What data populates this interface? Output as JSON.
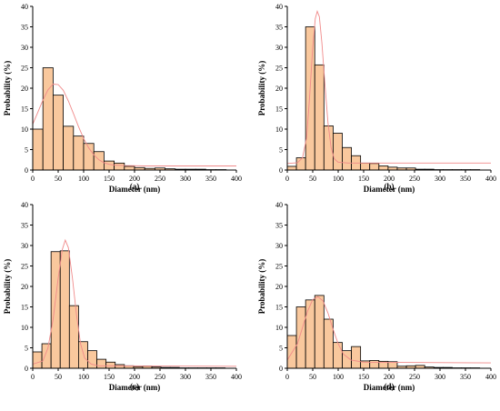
{
  "colors": {
    "bar_fill": "#f9c89d",
    "bar_stroke": "#000000",
    "fit_line": "#f08a8a",
    "axis": "#000000"
  },
  "chart_data": [
    {
      "type": "bar",
      "panel_label": "(a)",
      "xlabel": "Diameter (nm)",
      "ylabel": "Probability (%)",
      "xlim": [
        0,
        400
      ],
      "ylim": [
        0,
        40
      ],
      "x_ticks": [
        0,
        50,
        100,
        150,
        200,
        250,
        300,
        350,
        400
      ],
      "y_ticks": [
        0,
        5,
        10,
        15,
        20,
        25,
        30,
        35,
        40
      ],
      "bin_width": 20,
      "bins": [
        0,
        20,
        40,
        60,
        80,
        100,
        120,
        140,
        160,
        180,
        200,
        220,
        240,
        260,
        280,
        300,
        320,
        340,
        360
      ],
      "values": [
        10,
        25,
        18.3,
        10.7,
        8.3,
        6.5,
        4.5,
        2.2,
        1.7,
        0.9,
        0.6,
        0.4,
        0.5,
        0.3,
        0.2,
        0.2,
        0.2,
        0.1,
        0.1
      ],
      "fit_curve": [
        [
          0,
          11.2
        ],
        [
          10,
          14.1
        ],
        [
          20,
          17.1
        ],
        [
          30,
          19.6
        ],
        [
          40,
          21.0
        ],
        [
          50,
          20.9
        ],
        [
          60,
          19.5
        ],
        [
          70,
          16.9
        ],
        [
          80,
          13.8
        ],
        [
          90,
          10.6
        ],
        [
          100,
          7.7
        ],
        [
          110,
          5.4
        ],
        [
          120,
          3.7
        ],
        [
          130,
          2.5
        ],
        [
          140,
          1.8
        ],
        [
          150,
          1.4
        ],
        [
          160,
          1.2
        ],
        [
          180,
          1.1
        ],
        [
          220,
          1.0
        ],
        [
          400,
          1.0
        ]
      ]
    },
    {
      "type": "bar",
      "panel_label": "(b)",
      "xlabel": "Diameter (nm)",
      "ylabel": "Probability (%)",
      "xlim": [
        0,
        400
      ],
      "ylim": [
        0,
        40
      ],
      "x_ticks": [
        0,
        50,
        100,
        150,
        200,
        250,
        300,
        350,
        400
      ],
      "y_ticks": [
        0,
        5,
        10,
        15,
        20,
        25,
        30,
        35,
        40
      ],
      "bin_width": 18,
      "bins": [
        0,
        18,
        36,
        54,
        72,
        90,
        108,
        126,
        144,
        162,
        180,
        198,
        216,
        234,
        252,
        270,
        288,
        306,
        324,
        342,
        360
      ],
      "values": [
        0.9,
        3.0,
        35.0,
        25.7,
        10.8,
        9.0,
        5.5,
        3.5,
        1.7,
        1.6,
        1.0,
        0.7,
        0.5,
        0.5,
        0.2,
        0.2,
        0.1,
        0.1,
        0.1,
        0.1,
        0.1
      ],
      "fit_curve": [
        [
          0,
          1.6
        ],
        [
          20,
          1.8
        ],
        [
          30,
          3.0
        ],
        [
          38,
          8.0
        ],
        [
          44,
          18.0
        ],
        [
          50,
          30.0
        ],
        [
          55,
          37.0
        ],
        [
          59,
          38.8
        ],
        [
          63,
          37.5
        ],
        [
          68,
          31.0
        ],
        [
          74,
          21.0
        ],
        [
          80,
          11.5
        ],
        [
          86,
          5.5
        ],
        [
          92,
          2.8
        ],
        [
          100,
          1.9
        ],
        [
          120,
          1.7
        ],
        [
          400,
          1.7
        ]
      ]
    },
    {
      "type": "bar",
      "panel_label": "(c)",
      "xlabel": "Diameter (nm)",
      "ylabel": "Probability (%)",
      "xlim": [
        0,
        400
      ],
      "ylim": [
        0,
        40
      ],
      "x_ticks": [
        0,
        50,
        100,
        150,
        200,
        250,
        300,
        350,
        400
      ],
      "y_ticks": [
        0,
        5,
        10,
        15,
        20,
        25,
        30,
        35,
        40
      ],
      "bin_width": 18,
      "bins": [
        0,
        18,
        36,
        54,
        72,
        90,
        108,
        126,
        144,
        162,
        180,
        198,
        216,
        234,
        252,
        270,
        288,
        306,
        324,
        342,
        360
      ],
      "values": [
        4.0,
        6.0,
        28.5,
        28.7,
        15.3,
        6.5,
        4.3,
        2.2,
        1.5,
        0.9,
        0.6,
        0.4,
        0.5,
        0.3,
        0.2,
        0.2,
        0.1,
        0.1,
        0.1,
        0.1,
        0.1
      ],
      "fit_curve": [
        [
          0,
          1.0
        ],
        [
          20,
          1.8
        ],
        [
          30,
          5.0
        ],
        [
          40,
          12.0
        ],
        [
          50,
          22.0
        ],
        [
          58,
          29.0
        ],
        [
          64,
          31.3
        ],
        [
          70,
          29.5
        ],
        [
          78,
          22.0
        ],
        [
          86,
          13.0
        ],
        [
          94,
          6.0
        ],
        [
          102,
          2.5
        ],
        [
          115,
          1.0
        ],
        [
          130,
          0.6
        ],
        [
          400,
          0.5
        ]
      ]
    },
    {
      "type": "bar",
      "panel_label": "(d)",
      "xlabel": "Diameter (nm)",
      "ylabel": "Probability (%)",
      "xlim": [
        0,
        400
      ],
      "ylim": [
        0,
        40
      ],
      "x_ticks": [
        0,
        50,
        100,
        150,
        200,
        250,
        300,
        350,
        400
      ],
      "y_ticks": [
        0,
        5,
        10,
        15,
        20,
        25,
        30,
        35,
        40
      ],
      "bin_width": 18,
      "bins": [
        0,
        18,
        36,
        54,
        72,
        90,
        108,
        126,
        144,
        162,
        180,
        198,
        216,
        234,
        252,
        270,
        288,
        306,
        324,
        342,
        360
      ],
      "values": [
        8.0,
        15.0,
        16.7,
        17.8,
        12.0,
        6.3,
        4.3,
        5.3,
        1.8,
        1.9,
        1.7,
        1.6,
        0.5,
        0.6,
        0.7,
        0.3,
        0.2,
        0.2,
        0.1,
        0.1,
        0.1
      ],
      "fit_curve": [
        [
          0,
          2.0
        ],
        [
          20,
          6.0
        ],
        [
          30,
          10.0
        ],
        [
          40,
          14.0
        ],
        [
          50,
          16.8
        ],
        [
          60,
          17.5
        ],
        [
          70,
          16.5
        ],
        [
          80,
          13.5
        ],
        [
          90,
          9.5
        ],
        [
          100,
          6.0
        ],
        [
          110,
          3.5
        ],
        [
          125,
          2.0
        ],
        [
          150,
          1.5
        ],
        [
          400,
          1.3
        ]
      ]
    }
  ]
}
